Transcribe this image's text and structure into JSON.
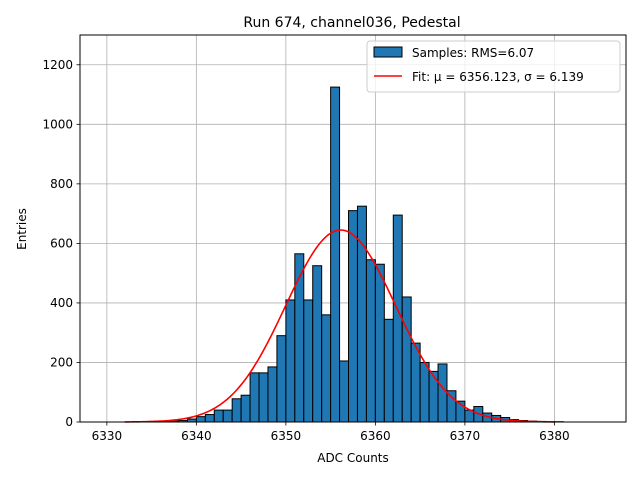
{
  "chart_data": {
    "type": "histogram",
    "title": "Run 674, channel036, Pedestal",
    "xlabel": "ADC Counts",
    "ylabel": "Entries",
    "xlim": [
      6327,
      6388
    ],
    "ylim": [
      0,
      1300
    ],
    "x_ticks": [
      6330,
      6340,
      6350,
      6360,
      6370,
      6380
    ],
    "y_ticks": [
      0,
      200,
      400,
      600,
      800,
      1000,
      1200
    ],
    "grid": true,
    "legend_position": "top-right",
    "bar_color": "#1f77b4",
    "fit_color": "#ff0000",
    "histogram": {
      "name": "Samples: RMS=6.07",
      "bin_starts": [
        6332,
        6333,
        6334,
        6335,
        6336,
        6337,
        6338,
        6339,
        6340,
        6341,
        6342,
        6343,
        6344,
        6345,
        6346,
        6347,
        6348,
        6349,
        6350,
        6351,
        6352,
        6353,
        6354,
        6355,
        6356,
        6357,
        6358,
        6359,
        6360,
        6361,
        6362,
        6363,
        6364,
        6365,
        6366,
        6367,
        6368,
        6369,
        6370,
        6371,
        6372,
        6373,
        6374,
        6375,
        6376,
        6377,
        6378,
        6379,
        6380,
        6381,
        6382,
        6383,
        6384
      ],
      "counts": [
        0,
        0,
        1,
        1,
        2,
        3,
        5,
        10,
        18,
        25,
        40,
        40,
        78,
        90,
        165,
        165,
        185,
        290,
        410,
        565,
        410,
        525,
        360,
        1125,
        205,
        710,
        725,
        545,
        530,
        345,
        695,
        420,
        265,
        200,
        170,
        195,
        105,
        70,
        40,
        52,
        30,
        22,
        15,
        8,
        5,
        3,
        2,
        1,
        1,
        0,
        0,
        0,
        0
      ]
    },
    "fit": {
      "label": "Fit: μ = 6356.123, σ = 6.139",
      "mu": 6356.123,
      "sigma": 6.139,
      "amplitude": 645,
      "x_range": [
        6332,
        6380
      ]
    }
  }
}
